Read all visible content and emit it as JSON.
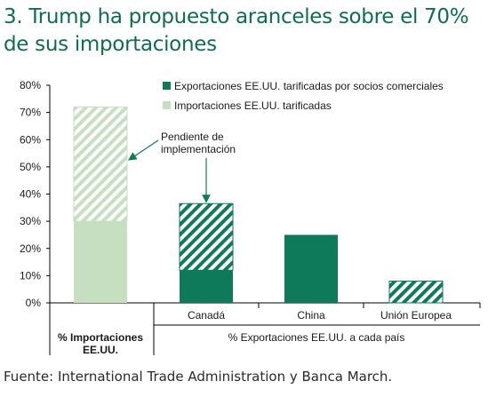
{
  "title": "3. Trump ha propuesto aranceles sobre el 70% de sus importaciones",
  "source": "Fuente: International Trade Administration y Banca March.",
  "colors": {
    "dark_green": "#0f7a5a",
    "light_green": "#c6dfc0",
    "title_green": "#0f6e4a"
  },
  "chart_data": {
    "type": "bar",
    "stacked": true,
    "ylim": [
      0,
      80
    ],
    "yticks": [
      "0%",
      "10%",
      "20%",
      "30%",
      "40%",
      "50%",
      "60%",
      "70%",
      "80%"
    ],
    "grid": false,
    "legend_position": "top-right",
    "legend": [
      "Exportaciones EE.UU. tarificadas por socios comerciales",
      "Importaciones EE.UU. tarificadas"
    ],
    "categories": [
      "",
      "Canadá",
      "China",
      "Unión Europea"
    ],
    "group_labels": [
      {
        "label": "% Importaciones\nEE.UU.",
        "bold": true
      },
      {
        "label": "% Exportaciones EE.UU. a cada país",
        "bold": false
      }
    ],
    "series": [
      {
        "name": "Importaciones EE.UU. tarificadas",
        "values": [
          30,
          null,
          null,
          null
        ],
        "style": "solid-light"
      },
      {
        "name": "Importaciones EE.UU. tarificadas",
        "values": [
          42,
          null,
          null,
          null
        ],
        "style": "hatched-light"
      },
      {
        "name": "Exportaciones EE.UU. tarificadas por socios comerciales",
        "values": [
          null,
          12,
          25,
          null
        ],
        "style": "solid-dark"
      },
      {
        "name": "Exportaciones EE.UU. tarificadas por socios comerciales",
        "values": [
          null,
          24.5,
          null,
          8
        ],
        "style": "hatched-dark"
      }
    ],
    "annotation": "Pendiente de\nimplementación"
  }
}
